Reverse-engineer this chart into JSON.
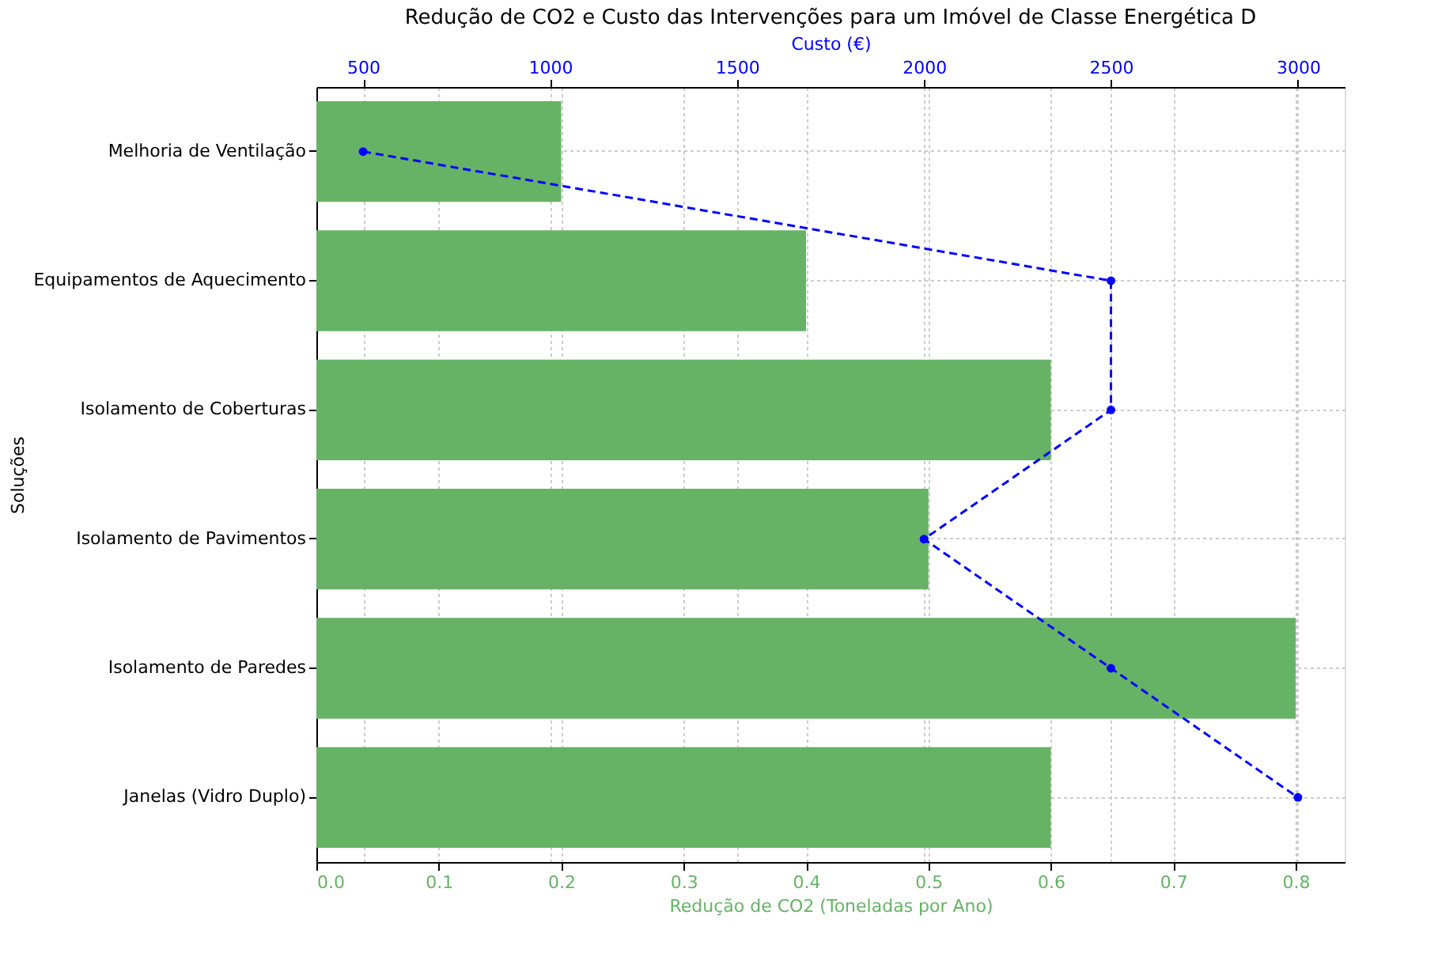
{
  "chart_data": {
    "type": "bar",
    "orientation": "horizontal",
    "title": "Redução de CO2 e Custo das Intervenções para um Imóvel de Classe Energética D",
    "categories": [
      "Melhoria de Ventilação",
      "Equipamentos de Aquecimento",
      "Isolamento de Coberturas",
      "Isolamento de Pavimentos",
      "Isolamento de Paredes",
      "Janelas (Vidro Duplo)"
    ],
    "xlabel": "Redução de CO2 (Toneladas por Ano)",
    "ylabel": "Soluções",
    "x2label": "Custo (€)",
    "xlim": [
      0,
      0.84
    ],
    "xticks": [
      {
        "value": 0,
        "label": "0.0"
      },
      0.1,
      0.2,
      0.3,
      0.4,
      0.5,
      0.6,
      0.7,
      0.8
    ],
    "x2lim": [
      375,
      3125
    ],
    "x2ticks": [
      500,
      1000,
      1500,
      2000,
      2500,
      3000
    ],
    "grid": true,
    "series": [
      {
        "color": "#66b366",
        "values": [
          0.2,
          0.4,
          0.6,
          0.5,
          0.8,
          0.6
        ]
      },
      {
        "type": "line",
        "axis": "x2",
        "color": "#0000ff",
        "marker": "circle",
        "line_style": "dashed",
        "values": [
          500,
          2500,
          2500,
          2000,
          2500,
          3000
        ]
      }
    ]
  }
}
